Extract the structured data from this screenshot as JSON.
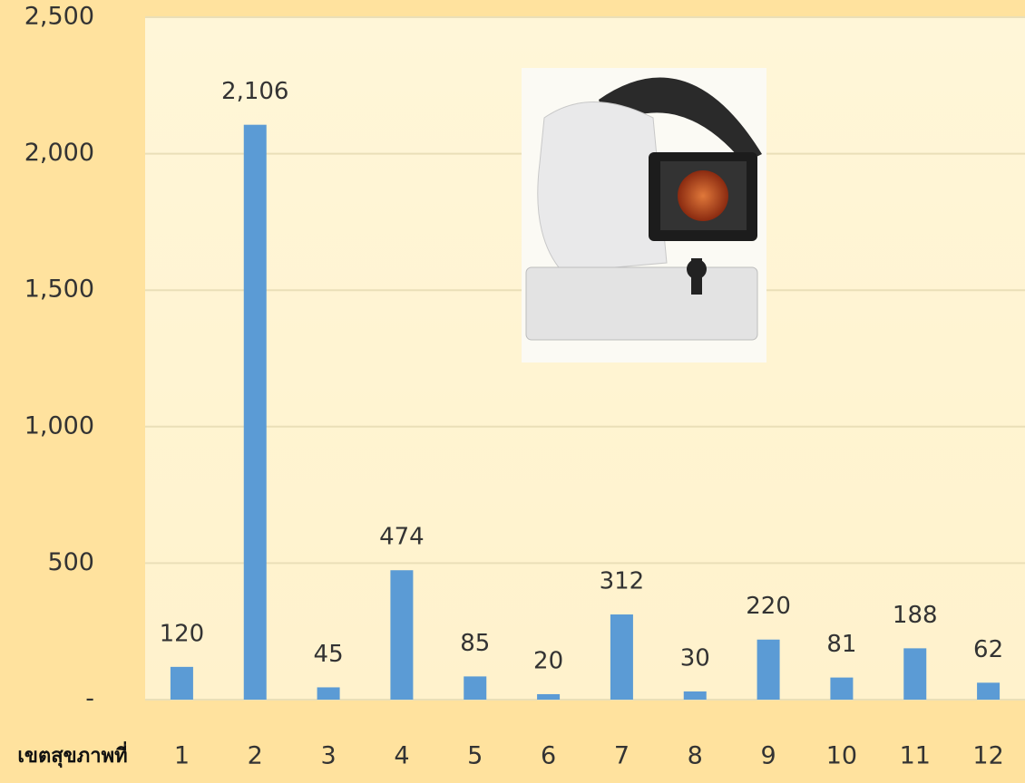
{
  "chart_data": {
    "type": "bar",
    "x_label": "เขตสุขภาพที่",
    "categories": [
      "1",
      "2",
      "3",
      "4",
      "5",
      "6",
      "7",
      "8",
      "9",
      "10",
      "11",
      "12"
    ],
    "values": [
      120,
      2106,
      45,
      474,
      85,
      20,
      312,
      30,
      220,
      81,
      188,
      62
    ],
    "value_labels": [
      "120",
      "2,106",
      "45",
      "474",
      "85",
      "20",
      "312",
      "30",
      "220",
      "81",
      "188",
      "62"
    ],
    "color": "#5B9BD5",
    "ylim": [
      0,
      2500
    ],
    "yticks": [
      {
        "value": 0,
        "label": "-"
      },
      500,
      {
        "value": 1000,
        "label": "1,000"
      },
      {
        "value": 1500,
        "label": "1,500"
      },
      {
        "value": 2000,
        "label": "2,000"
      },
      {
        "value": 2500,
        "label": "2,500"
      }
    ],
    "grid": true
  }
}
